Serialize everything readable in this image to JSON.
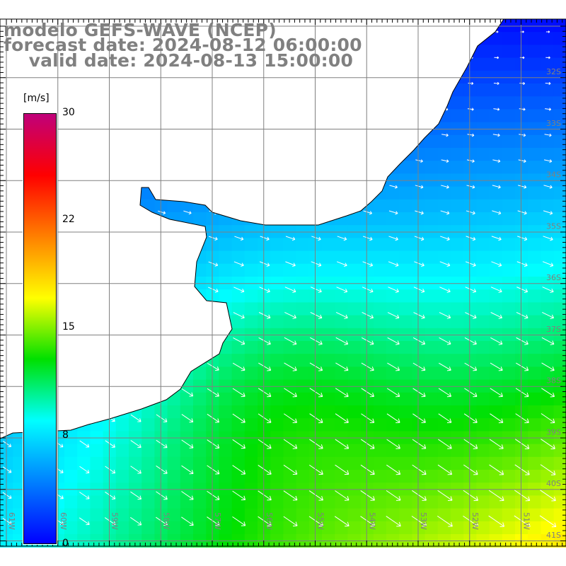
{
  "title": {
    "line1": "modelo GEFS-WAVE (NCEP)",
    "line2": "forecast date: 2024-08-12 06:00:00",
    "line3": "    valid date: 2024-08-13 15:00:00"
  },
  "colorbar": {
    "unit": "[m/s]",
    "ticks": [
      "30",
      "22",
      "15",
      "8",
      "0"
    ],
    "range": [
      0,
      30
    ],
    "stops": [
      "#0000ff",
      "#0080ff",
      "#00ffff",
      "#00e000",
      "#ffff00",
      "#ff8000",
      "#ff0000",
      "#c0007a"
    ]
  },
  "lon_labels": [
    "61W",
    "60W",
    "59W",
    "58W",
    "57W",
    "56W",
    "55W",
    "54W",
    "53W",
    "52W",
    "51W"
  ],
  "lat_labels": [
    "32S",
    "33S",
    "34S",
    "35S",
    "36S",
    "37S",
    "38S",
    "39S",
    "40S",
    "41S"
  ],
  "colors": {
    "land": "#ffffff",
    "grid": "#808080",
    "coast": "#000000",
    "arrow": "#ffffff",
    "text": "#808080"
  }
}
